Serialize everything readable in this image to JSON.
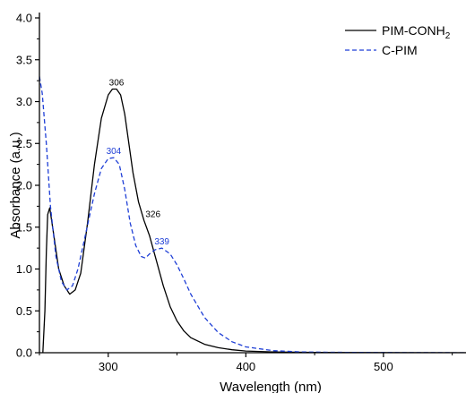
{
  "chart_data": {
    "type": "line",
    "title": "",
    "xlabel": "Wavelength (nm)",
    "ylabel": "Absorbance (a.u.)",
    "xlim": [
      250,
      560
    ],
    "ylim": [
      0.0,
      4.0
    ],
    "x_ticks": [
      300,
      400,
      500
    ],
    "x_tick_labels": [
      "300",
      "400",
      "500"
    ],
    "y_ticks": [
      0.0,
      0.5,
      1.0,
      1.5,
      2.0,
      2.5,
      3.0,
      3.5,
      4.0
    ],
    "y_tick_labels": [
      "0.0",
      "0.5",
      "1.0",
      "1.5",
      "2.0",
      "2.5",
      "3.0",
      "3.5",
      "4.0"
    ],
    "grid": false,
    "legend_position": "top-right",
    "series": [
      {
        "name": "PIM-CONH",
        "name_subscript": "2",
        "style": "solid",
        "color": "#000000",
        "x": [
          252.5,
          254,
          255,
          256,
          257.5,
          260,
          264,
          268,
          272,
          276,
          280,
          285,
          290,
          295,
          300,
          303,
          306,
          309,
          312,
          315,
          318,
          322,
          326,
          330,
          335,
          340,
          345,
          350,
          355,
          360,
          370,
          380,
          390,
          400,
          420,
          450,
          500,
          560
        ],
        "y": [
          0.0,
          0.5,
          1.2,
          1.65,
          1.73,
          1.45,
          1.0,
          0.8,
          0.7,
          0.75,
          0.95,
          1.55,
          2.25,
          2.8,
          3.08,
          3.15,
          3.15,
          3.08,
          2.85,
          2.5,
          2.15,
          1.8,
          1.58,
          1.4,
          1.1,
          0.8,
          0.55,
          0.38,
          0.26,
          0.18,
          0.1,
          0.06,
          0.035,
          0.02,
          0.01,
          0.004,
          0.001,
          0.0
        ]
      },
      {
        "name": "C-PIM",
        "style": "dashed",
        "color": "#1f3fd6",
        "x": [
          250,
          252,
          255,
          258,
          262,
          266,
          270,
          274,
          278,
          284,
          290,
          295,
          300,
          304,
          308,
          312,
          316,
          320,
          324,
          327,
          330,
          334,
          339,
          345,
          350,
          355,
          360,
          370,
          380,
          390,
          400,
          420,
          440,
          460,
          500,
          560
        ],
        "y": [
          3.3,
          3.1,
          2.5,
          1.75,
          1.15,
          0.85,
          0.75,
          0.8,
          1.0,
          1.45,
          1.9,
          2.2,
          2.32,
          2.33,
          2.25,
          1.95,
          1.55,
          1.28,
          1.15,
          1.13,
          1.18,
          1.23,
          1.25,
          1.18,
          1.05,
          0.88,
          0.7,
          0.42,
          0.24,
          0.13,
          0.07,
          0.025,
          0.01,
          0.005,
          0.002,
          0.0
        ]
      }
    ],
    "annotations": [
      {
        "text": "306",
        "x": 306,
        "y": 3.15,
        "series": 0
      },
      {
        "text": "326",
        "x": 326,
        "y": 1.58,
        "series": 0
      },
      {
        "text": "304",
        "x": 304,
        "y": 2.33,
        "series": 1
      },
      {
        "text": "339",
        "x": 339,
        "y": 1.25,
        "series": 1
      }
    ]
  }
}
